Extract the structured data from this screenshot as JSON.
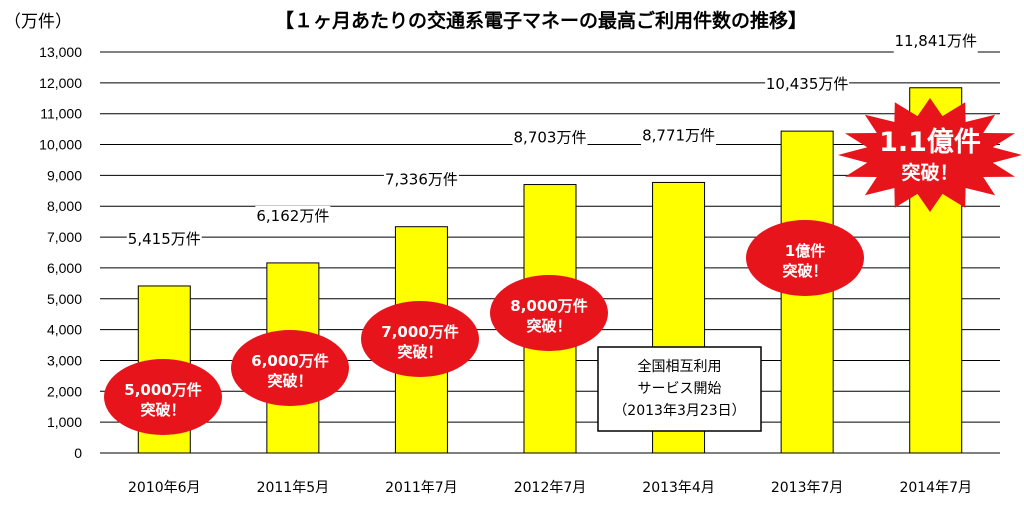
{
  "chart_data": {
    "type": "bar",
    "title": "【１ヶ月あたりの交通系電子マネーの最高ご利用件数の推移】",
    "unit_label": "（万件）",
    "categories": [
      "2010年6月",
      "2011年5月",
      "2011年7月",
      "2012年7月",
      "2013年4月",
      "2013年7月",
      "2014年7月"
    ],
    "values": [
      5415,
      6162,
      7336,
      8703,
      8771,
      10435,
      11841
    ],
    "data_labels": [
      "5,415万件",
      "6,162万件",
      "7,336万件",
      "8,703万件",
      "8,771万件",
      "10,435万件",
      "11,841万件"
    ],
    "ylim": [
      0,
      13000
    ],
    "yticks": [
      0,
      1000,
      2000,
      3000,
      4000,
      5000,
      6000,
      7000,
      8000,
      9000,
      10000,
      11000,
      12000,
      13000
    ],
    "ytick_labels": [
      "0",
      "1,000",
      "2,000",
      "3,000",
      "4,000",
      "5,000",
      "6,000",
      "7,000",
      "8,000",
      "9,000",
      "10,000",
      "11,000",
      "12,000",
      "13,000"
    ],
    "grid": true,
    "colors": {
      "bar": "#ffff00",
      "bar_stroke": "#000000",
      "grid": "#000000",
      "burst": "#e8141c",
      "burst_text": "#ffffff"
    },
    "annotations": [
      {
        "category_index": 0,
        "lines": [
          "5,000万件",
          "突破！"
        ],
        "shape": "ellipse"
      },
      {
        "category_index": 1,
        "lines": [
          "6,000万件",
          "突破！"
        ],
        "shape": "ellipse"
      },
      {
        "category_index": 2,
        "lines": [
          "7,000万件",
          "突破！"
        ],
        "shape": "ellipse"
      },
      {
        "category_index": 3,
        "lines": [
          "8,000万件",
          "突破！"
        ],
        "shape": "ellipse"
      },
      {
        "category_index": 5,
        "lines": [
          "1億件",
          "突破！"
        ],
        "shape": "ellipse"
      },
      {
        "category_index": 6,
        "lines": [
          "1.1億件",
          "突破！"
        ],
        "shape": "starburst"
      }
    ],
    "note_box": {
      "category_index": 4,
      "lines": [
        "全国相互利用",
        "サービス開始",
        "（2013年3月23日）"
      ]
    }
  }
}
